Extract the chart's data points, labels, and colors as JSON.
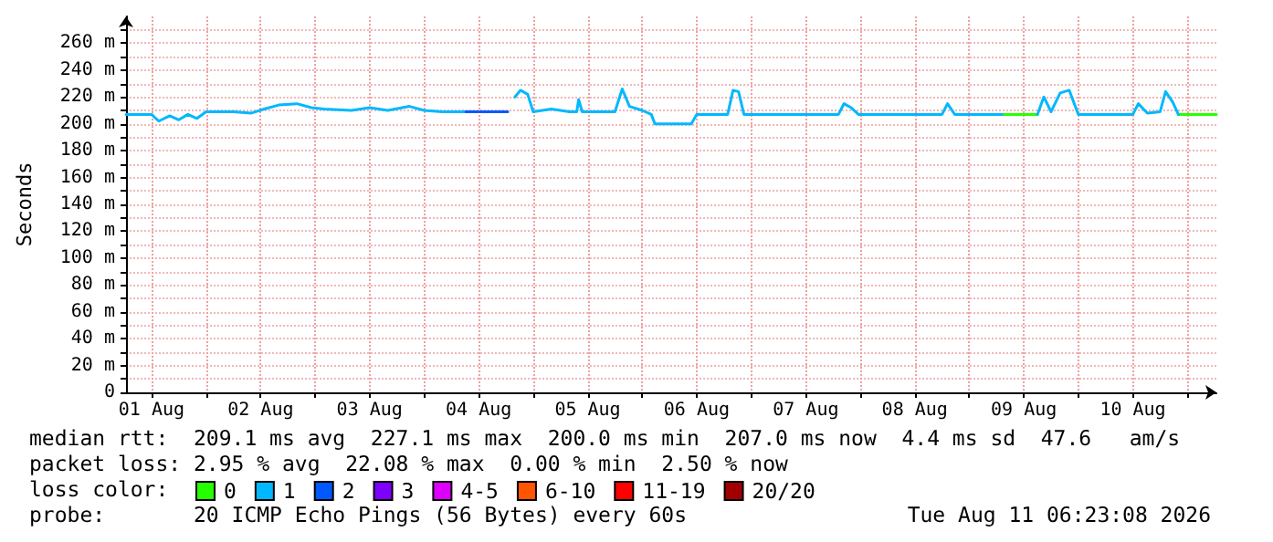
{
  "chart_data": {
    "type": "line",
    "ylabel": "Seconds",
    "legend_title": "loss color:",
    "legend": "bottom",
    "grid": true,
    "marker": "none",
    "line_style": "solid",
    "xlim": [
      "2026-08-01T06:23",
      "2026-08-11T06:23"
    ],
    "xticks": [
      {
        "value": "2026-08-01T12:00",
        "label": "01 Aug"
      },
      {
        "value": "2026-08-02T00:00",
        "label": null
      },
      {
        "value": "2026-08-02T12:00",
        "label": "02 Aug"
      },
      {
        "value": "2026-08-03T00:00",
        "label": null
      },
      {
        "value": "2026-08-03T12:00",
        "label": "03 Aug"
      },
      {
        "value": "2026-08-04T00:00",
        "label": null
      },
      {
        "value": "2026-08-04T12:00",
        "label": "04 Aug"
      },
      {
        "value": "2026-08-05T00:00",
        "label": null
      },
      {
        "value": "2026-08-05T12:00",
        "label": "05 Aug"
      },
      {
        "value": "2026-08-06T00:00",
        "label": null
      },
      {
        "value": "2026-08-06T12:00",
        "label": "06 Aug"
      },
      {
        "value": "2026-08-07T00:00",
        "label": null
      },
      {
        "value": "2026-08-07T12:00",
        "label": "07 Aug"
      },
      {
        "value": "2026-08-08T00:00",
        "label": null
      },
      {
        "value": "2026-08-08T12:00",
        "label": "08 Aug"
      },
      {
        "value": "2026-08-09T00:00",
        "label": null
      },
      {
        "value": "2026-08-09T12:00",
        "label": "09 Aug"
      },
      {
        "value": "2026-08-10T00:00",
        "label": null
      },
      {
        "value": "2026-08-10T12:00",
        "label": "10 Aug"
      },
      {
        "value": "2026-08-11T00:00",
        "label": null
      }
    ],
    "ylim": [
      0,
      280
    ],
    "yticks": [
      0,
      {
        "value": 10,
        "label": null
      },
      {
        "value": 20,
        "label": "20 m"
      },
      {
        "value": 30,
        "label": null
      },
      {
        "value": 40,
        "label": "40 m"
      },
      {
        "value": 50,
        "label": null
      },
      {
        "value": 60,
        "label": "60 m"
      },
      {
        "value": 70,
        "label": null
      },
      {
        "value": 80,
        "label": "80 m"
      },
      {
        "value": 90,
        "label": null
      },
      {
        "value": 100,
        "label": "100 m"
      },
      {
        "value": 110,
        "label": null
      },
      {
        "value": 120,
        "label": "120 m"
      },
      {
        "value": 130,
        "label": null
      },
      {
        "value": 140,
        "label": "140 m"
      },
      {
        "value": 150,
        "label": null
      },
      {
        "value": 160,
        "label": "160 m"
      },
      {
        "value": 170,
        "label": null
      },
      {
        "value": 180,
        "label": "180 m"
      },
      {
        "value": 190,
        "label": null
      },
      {
        "value": 200,
        "label": "200 m"
      },
      {
        "value": 210,
        "label": null
      },
      {
        "value": 220,
        "label": "220 m"
      },
      {
        "value": 230,
        "label": null
      },
      {
        "value": 240,
        "label": "240 m"
      },
      {
        "value": 250,
        "label": null
      },
      {
        "value": 260,
        "label": "260 m"
      },
      {
        "value": 270,
        "label": null
      }
    ],
    "series": [
      {
        "name": "0",
        "color": "#26ff00",
        "x": [
          "2026-08-09T07:12",
          "2026-08-09T15:00",
          "2026-08-10T12:00",
          "2026-08-10T22:00",
          "2026-08-11T06:23"
        ],
        "values": [
          207,
          207,
          null,
          207,
          207
        ]
      },
      {
        "name": "1",
        "color": "#00b8ff",
        "x": [
          "2026-08-01T06:23",
          "2026-08-01T12:00",
          "2026-08-01T13:36",
          "2026-08-01T16:00",
          "2026-08-01T18:00",
          "2026-08-01T20:00",
          "2026-08-01T22:00",
          "2026-08-02T00:00",
          "2026-08-02T06:00",
          "2026-08-02T10:00",
          "2026-08-02T12:48",
          "2026-08-02T16:00",
          "2026-08-02T20:00",
          "2026-08-02T23:12",
          "2026-08-03T02:00",
          "2026-08-03T08:00",
          "2026-08-03T12:00",
          "2026-08-03T16:00",
          "2026-08-03T20:48",
          "2026-08-04T00:00",
          "2026-08-04T04:00",
          "2026-08-04T09:12",
          "2026-08-04T18:24",
          "2026-08-04T20:00",
          "2026-08-04T21:12",
          "2026-08-04T22:48",
          "2026-08-05T00:00",
          "2026-08-05T04:00",
          "2026-08-05T08:00",
          "2026-08-05T09:36",
          "2026-08-05T10:00",
          "2026-08-05T10:48",
          "2026-08-05T18:00",
          "2026-08-05T19:36",
          "2026-08-05T21:12",
          "2026-08-06T00:00",
          "2026-08-06T02:00",
          "2026-08-06T02:48",
          "2026-08-06T10:48",
          "2026-08-06T12:00",
          "2026-08-06T18:48",
          "2026-08-06T20:00",
          "2026-08-06T21:12",
          "2026-08-06T22:24",
          "2026-08-07T19:12",
          "2026-08-07T20:24",
          "2026-08-07T22:00",
          "2026-08-07T23:36",
          "2026-08-08T18:00",
          "2026-08-08T19:12",
          "2026-08-08T20:48",
          "2026-08-09T07:12",
          "2026-08-09T11:00",
          "2026-08-09T15:00",
          "2026-08-09T16:24",
          "2026-08-09T18:00",
          "2026-08-09T20:00",
          "2026-08-09T22:00",
          "2026-08-10T00:00",
          "2026-08-10T12:00",
          "2026-08-10T13:12",
          "2026-08-10T15:12",
          "2026-08-10T18:00",
          "2026-08-10T19:12",
          "2026-08-10T20:48",
          "2026-08-10T22:00"
        ],
        "values": [
          207,
          207,
          202,
          206,
          203,
          207,
          204,
          209,
          209,
          208,
          211,
          214,
          215,
          212,
          211,
          210,
          212,
          210,
          213,
          210,
          209,
          209,
          null,
          220,
          225,
          222,
          209,
          211,
          209,
          209,
          218,
          209,
          209,
          226,
          213,
          210,
          207,
          200,
          200,
          207,
          207,
          225,
          224,
          207,
          207,
          215,
          212,
          207,
          207,
          215,
          207,
          207,
          null,
          207,
          220,
          209,
          223,
          225,
          207,
          207,
          215,
          208,
          209,
          224,
          216,
          207
        ]
      },
      {
        "name": "2",
        "color": "#0059ff",
        "x": [
          "2026-08-04T09:12",
          "2026-08-04T18:24"
        ],
        "values": [
          209,
          209
        ]
      },
      {
        "name": "3",
        "color": "#7e00ff"
      },
      {
        "name": "4-5",
        "color": "#dd00ff"
      },
      {
        "name": "6-10",
        "color": "#ff5500"
      },
      {
        "name": "11-19",
        "color": "#ff0000"
      },
      {
        "name": "20/20",
        "color": "#a10000"
      }
    ],
    "annotations": [
      "median rtt:  209.1 ms avg  227.1 ms max  200.0 ms min  207.0 ms now  4.4 ms sd  47.6   am/s",
      "packet loss: 2.95 % avg  22.08 % max  0.00 % min  2.50 % now",
      "probe:       20 ICMP Echo Pings (56 Bytes) every 60s",
      "Tue Aug 11 06:23:08 2026"
    ]
  }
}
